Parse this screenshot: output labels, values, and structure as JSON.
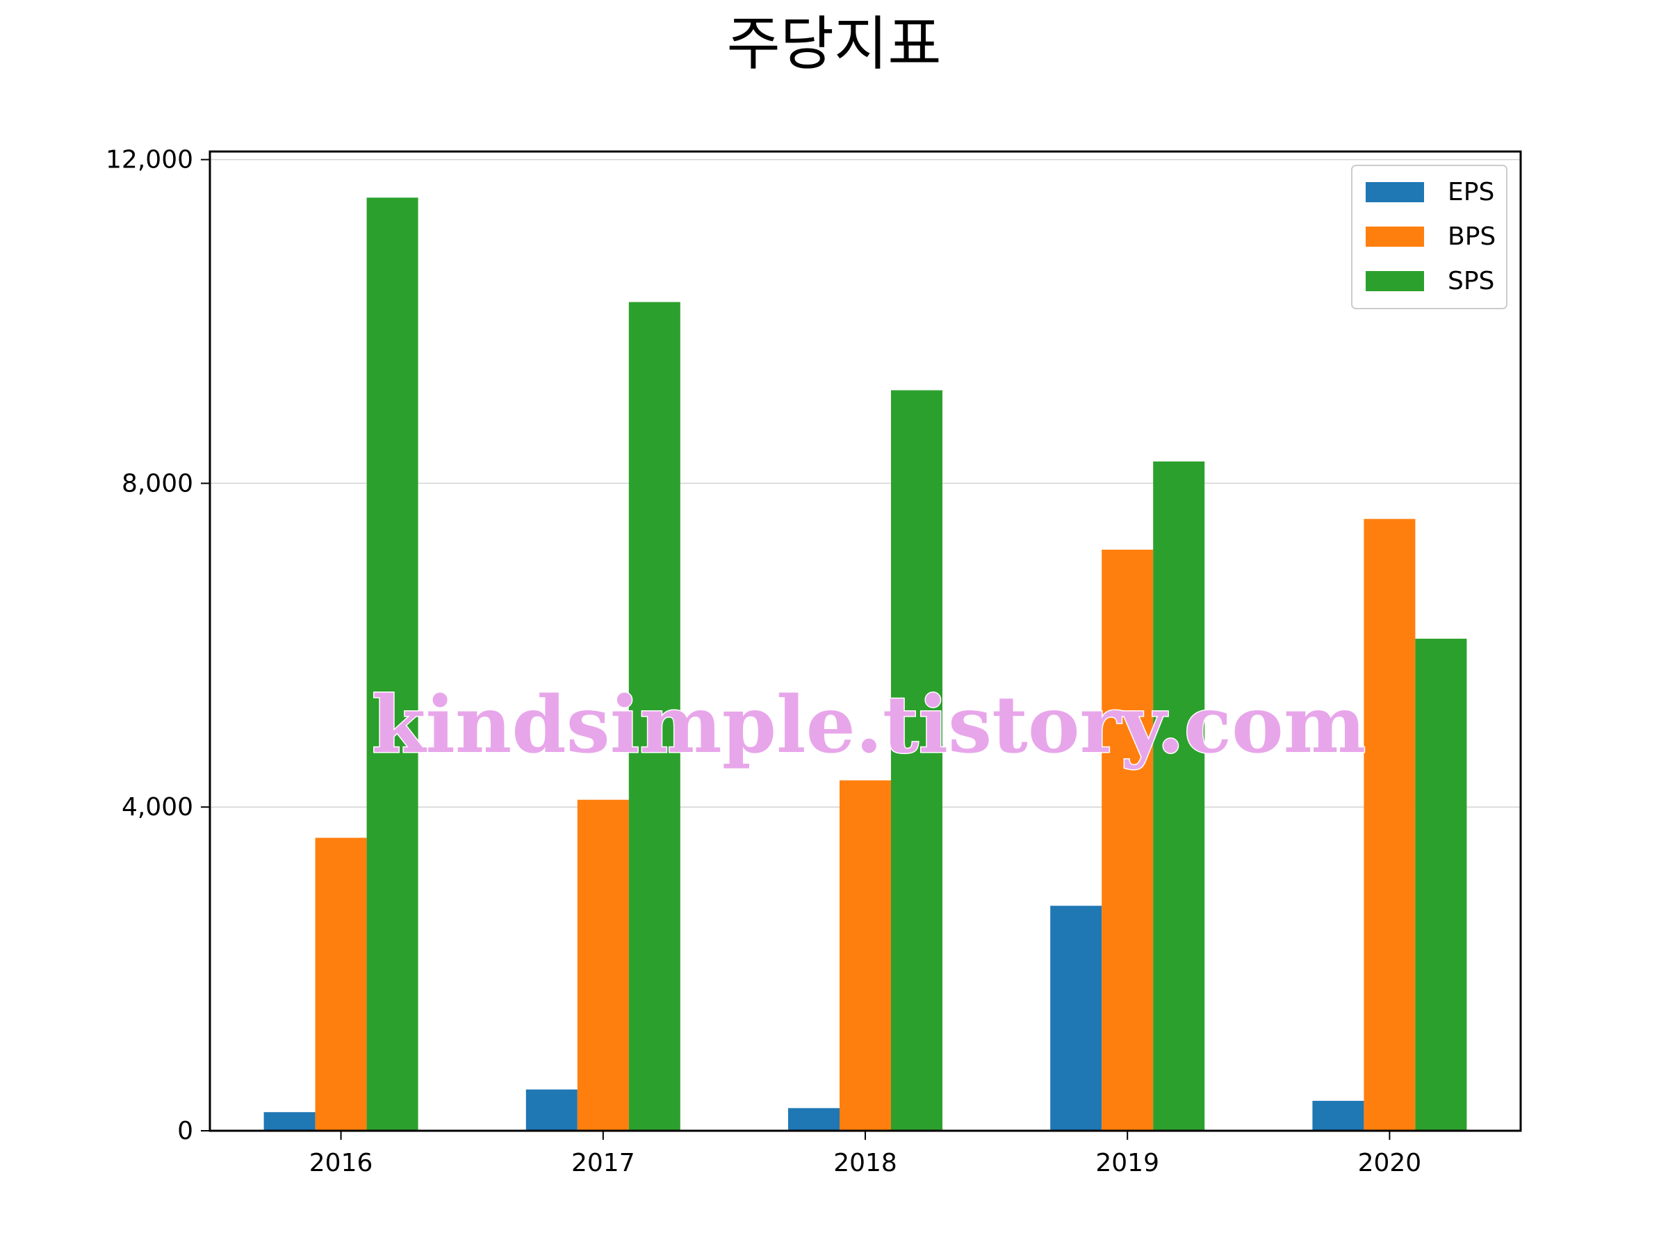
{
  "chart_data": {
    "type": "bar",
    "title": "주당지표",
    "xlabel": "",
    "ylabel": "",
    "categories": [
      "2016",
      "2017",
      "2018",
      "2019",
      "2020"
    ],
    "series": [
      {
        "name": "EPS",
        "color": "#1f77b4",
        "values": [
          230,
          510,
          280,
          2780,
          370
        ]
      },
      {
        "name": "BPS",
        "color": "#ff7f0e",
        "values": [
          3620,
          4090,
          4330,
          7180,
          7560
        ]
      },
      {
        "name": "SPS",
        "color": "#2ca02c",
        "values": [
          11530,
          10240,
          9150,
          8270,
          6080
        ]
      }
    ],
    "ylim": [
      0,
      12100
    ],
    "yticks": [
      0,
      4000,
      8000,
      12000
    ],
    "ytick_labels": [
      "0",
      "4,000",
      "8,000",
      "12,000"
    ],
    "grid": "y",
    "legend_position": "top-right"
  },
  "watermark": "kindsimple.tistory.com"
}
